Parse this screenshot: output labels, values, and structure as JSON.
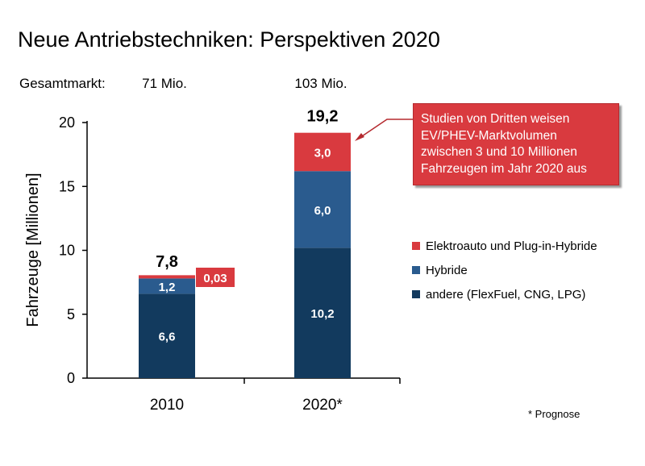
{
  "header": {
    "title": "Neue Antriebstechniken: Perspektiven 2020",
    "gesamtmarkt_label": "Gesamtmarkt:",
    "gesamtmarkt_values": [
      "71 Mio.",
      "103 Mio."
    ]
  },
  "callout": {
    "text": "Studien von Dritten weisen\nEV/PHEV-Marktvolumen\nzwischen 3 und 10 Millionen\nFahrzeugen im Jahr 2020 aus"
  },
  "footnote": "* Prognose",
  "colors": {
    "andere": "#123a5e",
    "hybride": "#2a5b8e",
    "elektro": "#d93a3f",
    "axis": "#000000"
  },
  "chart_data": {
    "type": "bar",
    "stacked": true,
    "categories": [
      "2010",
      "2020*"
    ],
    "series": [
      {
        "name": "andere (FlexFuel, CNG, LPG)",
        "values": [
          6.6,
          10.2
        ],
        "labels": [
          "6,6",
          "10,2"
        ]
      },
      {
        "name": "Hybride",
        "values": [
          1.2,
          6.0
        ],
        "labels": [
          "1,2",
          "6,0"
        ]
      },
      {
        "name": "Elektroauto und Plug-in-Hybride",
        "values": [
          0.03,
          3.0
        ],
        "labels": [
          "0,03",
          "3,0"
        ]
      }
    ],
    "totals": [
      "7,8",
      "19,2"
    ],
    "ylabel": "Fahrzeuge [Millionen]",
    "xlabel": "",
    "ylim": [
      0,
      20
    ],
    "yticks": [
      0,
      5,
      10,
      15,
      20
    ],
    "legend_position": "right",
    "grid": false
  }
}
